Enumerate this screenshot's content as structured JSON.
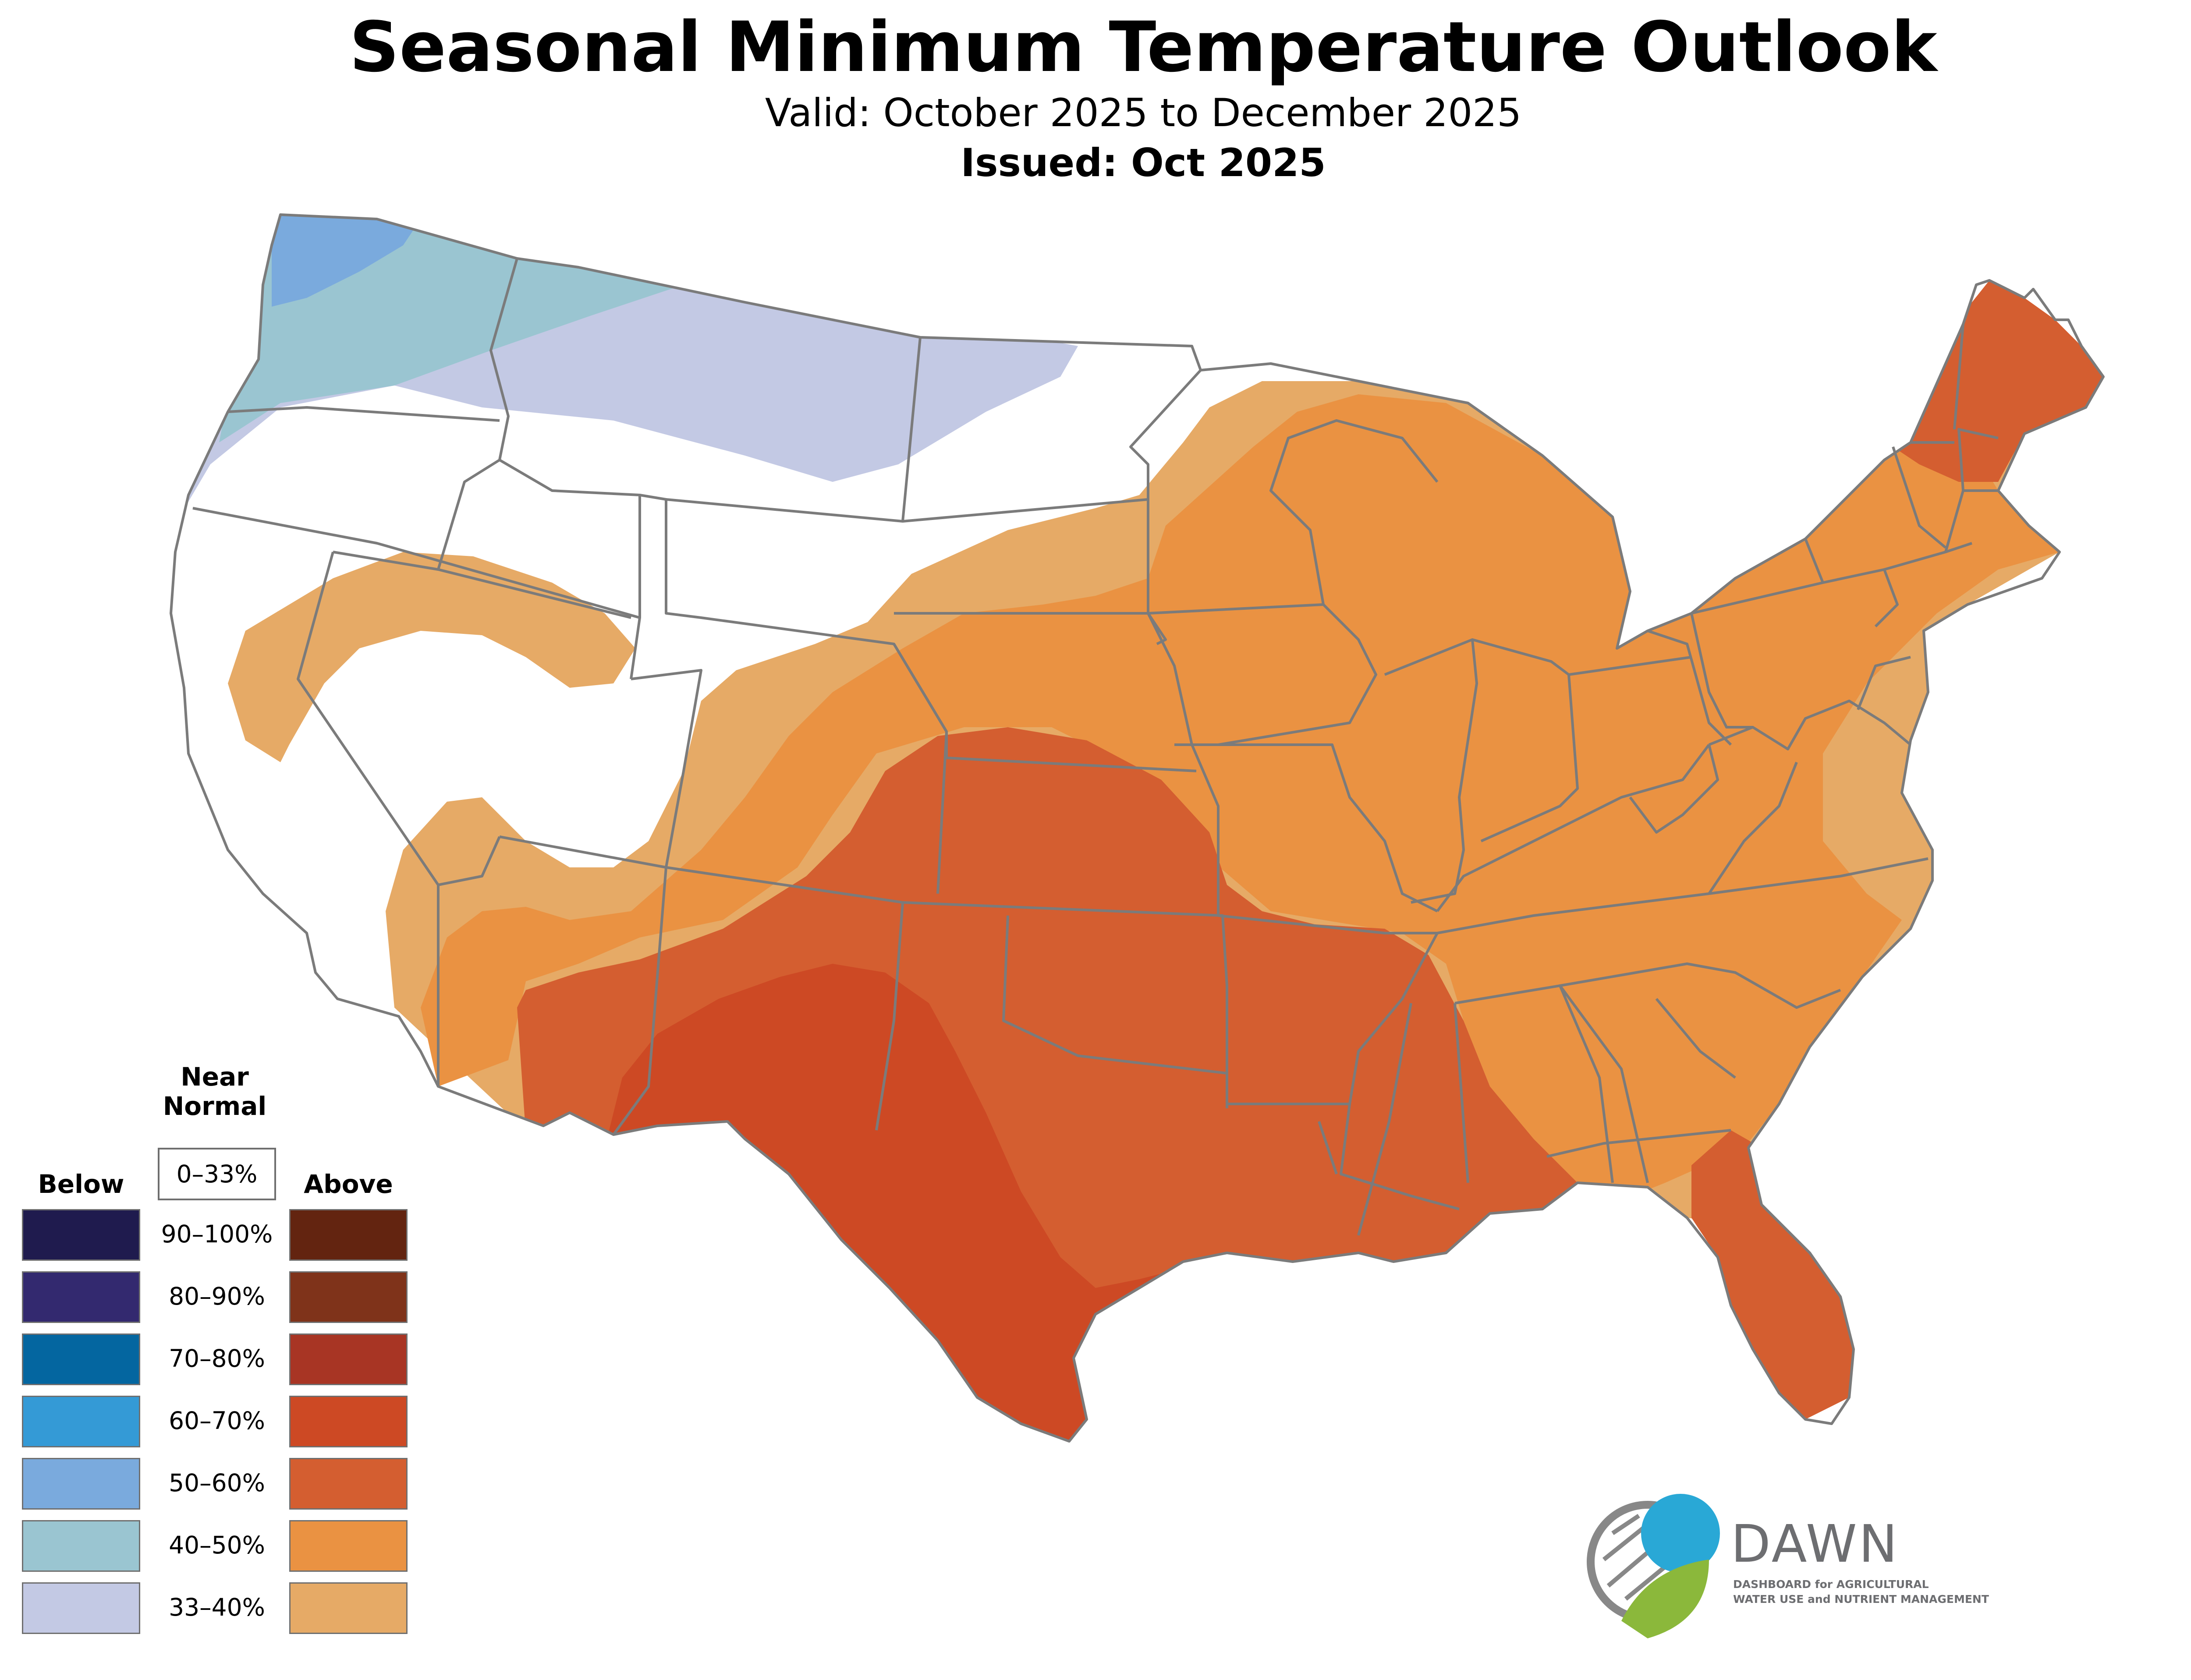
{
  "title": "Seasonal Minimum Temperature Outlook",
  "valid": "Valid: October 2025 to December 2025",
  "issued": "Issued: Oct 2025",
  "legend": {
    "below_label": "Below",
    "near_normal_label": "Near\nNormal",
    "above_label": "Above",
    "near_normal_value": "0–33%",
    "categories": [
      {
        "label": "90–100%",
        "below_color": "#1f1b4e",
        "above_color": "#632410"
      },
      {
        "label": "80–90%",
        "below_color": "#33296f",
        "above_color": "#7f331a"
      },
      {
        "label": "70–80%",
        "below_color": "#0466a0",
        "above_color": "#a83524"
      },
      {
        "label": "60–70%",
        "below_color": "#349ad6",
        "above_color": "#cd4924"
      },
      {
        "label": "50–60%",
        "below_color": "#7aaadd",
        "above_color": "#d45e30"
      },
      {
        "label": "40–50%",
        "below_color": "#9ac5d1",
        "above_color": "#ea9242"
      },
      {
        "label": "33–40%",
        "below_color": "#c3c9e4",
        "above_color": "#e6aa66"
      }
    ]
  },
  "logo": {
    "name": "DAWN",
    "line1": "DASHBOARD for AGRICULTURAL",
    "line2": "WATER USE and NUTRIENT MANAGEMENT"
  },
  "colors": {
    "state_border": "#7b7b7b",
    "above_33_40": "#e6aa66",
    "above_40_50": "#ea9242",
    "above_50_60": "#d45e30",
    "above_60_70": "#cd4924",
    "below_33_40": "#c3c9e4",
    "below_40_50": "#9ac5d1",
    "below_50_60": "#7aaadd"
  }
}
